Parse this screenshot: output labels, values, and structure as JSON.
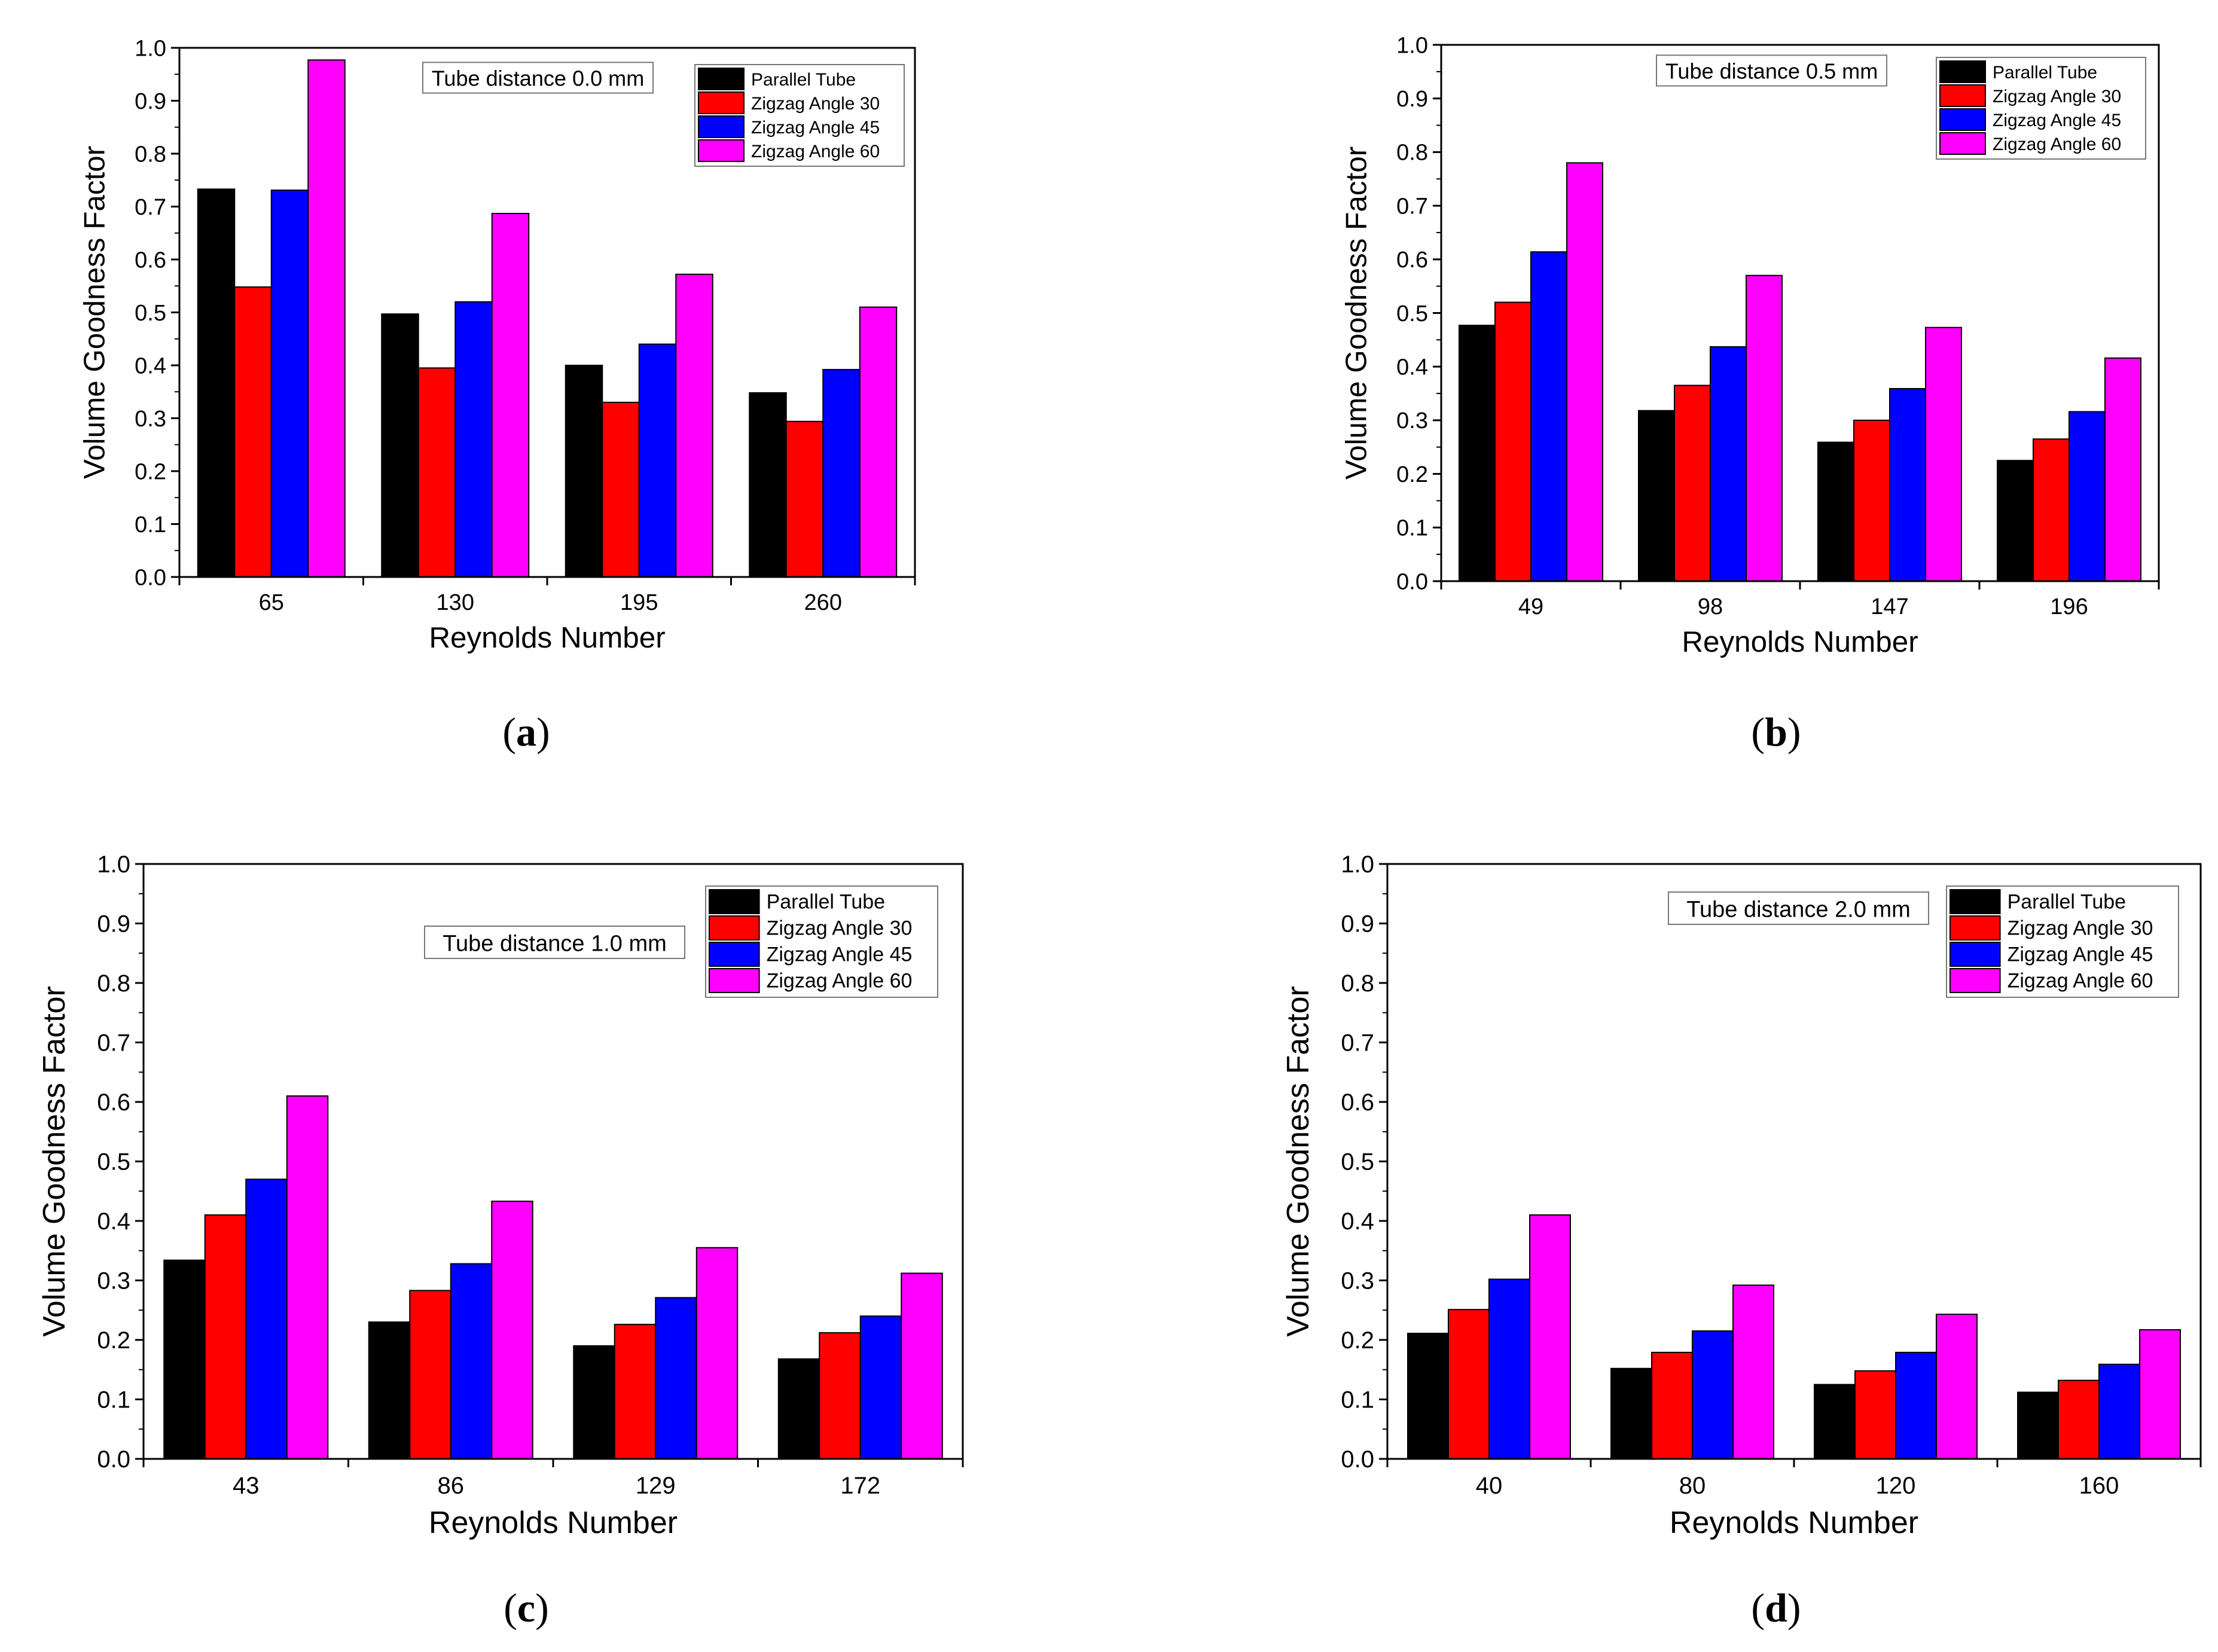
{
  "chart_data": [
    {
      "type": "bar",
      "panel_label": "a",
      "annotation": "Tube distance 0.0 mm",
      "xlabel": "Reynolds Number",
      "ylabel": "Volume Goodness Factor",
      "ylim": [
        0,
        1.0
      ],
      "yticks": [
        "0.0",
        "0.1",
        "0.2",
        "0.3",
        "0.4",
        "0.5",
        "0.6",
        "0.7",
        "0.8",
        "0.9",
        "1.0"
      ],
      "categories": [
        "65",
        "130",
        "195",
        "260"
      ],
      "legend_position": "top-right",
      "series": [
        {
          "name": "Parallel Tube",
          "color": "#000000",
          "values": [
            0.733,
            0.497,
            0.4,
            0.348
          ]
        },
        {
          "name": "Zigzag Angle 30",
          "color": "#ff0000",
          "values": [
            0.548,
            0.395,
            0.33,
            0.294
          ]
        },
        {
          "name": "Zigzag Angle 45",
          "color": "#0000ff",
          "values": [
            0.731,
            0.52,
            0.44,
            0.392
          ]
        },
        {
          "name": "Zigzag Angle 60",
          "color": "#ff00ff",
          "values": [
            0.977,
            0.687,
            0.572,
            0.51
          ]
        }
      ]
    },
    {
      "type": "bar",
      "panel_label": "b",
      "annotation": "Tube distance 0.5 mm",
      "xlabel": "Reynolds Number",
      "ylabel": "Volume Goodness Factor",
      "ylim": [
        0,
        1.0
      ],
      "yticks": [
        "0.0",
        "0.1",
        "0.2",
        "0.3",
        "0.4",
        "0.5",
        "0.6",
        "0.7",
        "0.8",
        "0.9",
        "1.0"
      ],
      "categories": [
        "49",
        "98",
        "147",
        "196"
      ],
      "legend_position": "top-right",
      "series": [
        {
          "name": "Parallel Tube",
          "color": "#000000",
          "values": [
            0.477,
            0.318,
            0.259,
            0.225
          ]
        },
        {
          "name": "Zigzag Angle 30",
          "color": "#ff0000",
          "values": [
            0.52,
            0.365,
            0.3,
            0.265
          ]
        },
        {
          "name": "Zigzag Angle 45",
          "color": "#0000ff",
          "values": [
            0.614,
            0.437,
            0.359,
            0.316
          ]
        },
        {
          "name": "Zigzag Angle 60",
          "color": "#ff00ff",
          "values": [
            0.78,
            0.57,
            0.473,
            0.416
          ]
        }
      ]
    },
    {
      "type": "bar",
      "panel_label": "c",
      "annotation": "Tube distance 1.0 mm",
      "xlabel": "Reynolds Number",
      "ylabel": "Volume Goodness Factor",
      "ylim": [
        0,
        1.0
      ],
      "yticks": [
        "0.0",
        "0.1",
        "0.2",
        "0.3",
        "0.4",
        "0.5",
        "0.6",
        "0.7",
        "0.8",
        "0.9",
        "1.0"
      ],
      "categories": [
        "43",
        "86",
        "129",
        "172"
      ],
      "legend_position": "top-right",
      "series": [
        {
          "name": "Parallel Tube",
          "color": "#000000",
          "values": [
            0.334,
            0.23,
            0.19,
            0.168
          ]
        },
        {
          "name": "Zigzag Angle 30",
          "color": "#ff0000",
          "values": [
            0.41,
            0.283,
            0.226,
            0.212
          ]
        },
        {
          "name": "Zigzag Angle 45",
          "color": "#0000ff",
          "values": [
            0.47,
            0.328,
            0.271,
            0.24
          ]
        },
        {
          "name": "Zigzag Angle 60",
          "color": "#ff00ff",
          "values": [
            0.61,
            0.433,
            0.355,
            0.312
          ]
        }
      ]
    },
    {
      "type": "bar",
      "panel_label": "d",
      "annotation": "Tube distance 2.0 mm",
      "xlabel": "Reynolds Number",
      "ylabel": "Volume Goodness Factor",
      "ylim": [
        0,
        1.0
      ],
      "yticks": [
        "0.0",
        "0.1",
        "0.2",
        "0.3",
        "0.4",
        "0.5",
        "0.6",
        "0.7",
        "0.8",
        "0.9",
        "1.0"
      ],
      "categories": [
        "40",
        "80",
        "120",
        "160"
      ],
      "legend_position": "top-right",
      "series": [
        {
          "name": "Parallel Tube",
          "color": "#000000",
          "values": [
            0.211,
            0.152,
            0.125,
            0.112
          ]
        },
        {
          "name": "Zigzag Angle 30",
          "color": "#ff0000",
          "values": [
            0.251,
            0.179,
            0.148,
            0.132
          ]
        },
        {
          "name": "Zigzag Angle 45",
          "color": "#0000ff",
          "values": [
            0.302,
            0.215,
            0.179,
            0.159
          ]
        },
        {
          "name": "Zigzag Angle 60",
          "color": "#ff00ff",
          "values": [
            0.41,
            0.292,
            0.243,
            0.217
          ]
        }
      ]
    }
  ]
}
